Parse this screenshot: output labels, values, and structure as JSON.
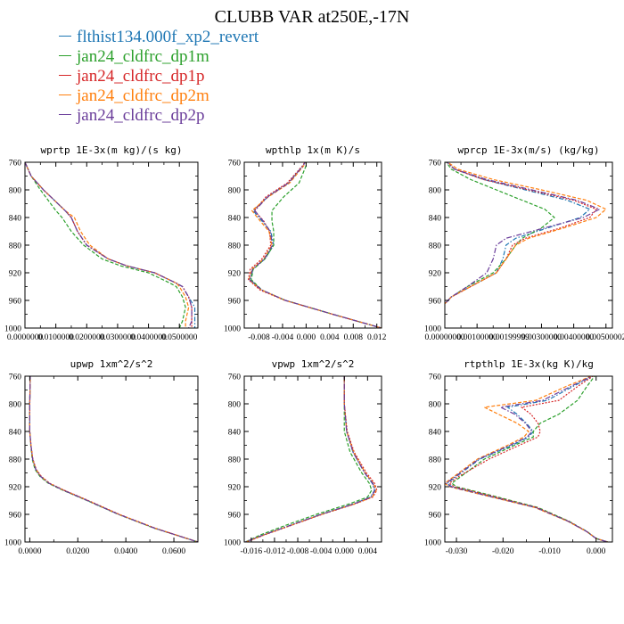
{
  "title": "CLUBB VAR at250E,-17N",
  "legend": [
    {
      "label": "flthist134.000f_xp2_revert",
      "color": "#1f77b4"
    },
    {
      "label": "jan24_cldfrc_dp1m",
      "color": "#2ca02c"
    },
    {
      "label": "jan24_cldfrc_dp1p",
      "color": "#d62728"
    },
    {
      "label": "jan24_cldfrc_dp2m",
      "color": "#ff7f0e"
    },
    {
      "label": "jan24_cldfrc_dp2p",
      "color": "#6a3d9a"
    }
  ],
  "chart_data": [
    {
      "type": "line",
      "title": "wprtp  1E-3x(m kg)/(s kg)",
      "ylim": [
        760,
        1000
      ],
      "xlim": [
        0.0,
        0.056
      ],
      "y_ticks": [
        760,
        800,
        840,
        880,
        920,
        960,
        1000
      ],
      "y_tick_labels": [
        "760",
        "800",
        "840",
        "880",
        "920",
        "960",
        "1000"
      ],
      "x_ticks": [
        0.0,
        0.01,
        0.02,
        0.03,
        0.04,
        0.05
      ],
      "x_tick_labels": [
        "0.0000000",
        "0.0100000",
        "0.0200000",
        "0.0300000",
        "0.0400000",
        "0.0500000"
      ],
      "y": [
        760,
        780,
        800,
        830,
        840,
        860,
        880,
        900,
        910,
        920,
        935,
        940,
        955,
        970,
        990,
        1000
      ],
      "series": [
        {
          "values": [
            0.0,
            0.002,
            0.006,
            0.013,
            0.015,
            0.017,
            0.02,
            0.027,
            0.033,
            0.042,
            0.049,
            0.051,
            0.053,
            0.055,
            0.055,
            0.055
          ]
        },
        {
          "values": [
            0.0,
            0.002,
            0.005,
            0.01,
            0.012,
            0.015,
            0.019,
            0.025,
            0.031,
            0.04,
            0.047,
            0.049,
            0.051,
            0.052,
            0.051,
            0.05
          ]
        },
        {
          "values": [
            0.0,
            0.002,
            0.006,
            0.013,
            0.015,
            0.017,
            0.02,
            0.027,
            0.033,
            0.042,
            0.049,
            0.051,
            0.053,
            0.054,
            0.054,
            0.054
          ]
        },
        {
          "values": [
            0.0,
            0.002,
            0.006,
            0.013,
            0.016,
            0.018,
            0.021,
            0.027,
            0.033,
            0.042,
            0.049,
            0.05,
            0.052,
            0.053,
            0.052,
            0.052
          ]
        },
        {
          "values": [
            0.0,
            0.002,
            0.006,
            0.013,
            0.015,
            0.017,
            0.02,
            0.027,
            0.033,
            0.042,
            0.049,
            0.051,
            0.053,
            0.054,
            0.054,
            0.053
          ]
        }
      ]
    },
    {
      "type": "line",
      "title": "wpthlp  1x(m K)/s",
      "ylim": [
        760,
        1000
      ],
      "xlim": [
        -0.0105,
        0.0128
      ],
      "y_ticks": [
        760,
        800,
        840,
        880,
        920,
        960,
        1000
      ],
      "y_tick_labels": [
        "760",
        "800",
        "840",
        "880",
        "920",
        "960",
        "1000"
      ],
      "x_ticks": [
        -0.008,
        -0.004,
        0.0,
        0.004,
        0.008,
        0.012
      ],
      "x_tick_labels": [
        "-0.008",
        "-0.004",
        "0.000",
        "0.004",
        "0.008",
        "0.012"
      ],
      "y": [
        757,
        765,
        790,
        810,
        830,
        845,
        860,
        880,
        900,
        915,
        930,
        945,
        960,
        980,
        1000
      ],
      "series": [
        {
          "values": [
            0.0,
            -0.0005,
            -0.003,
            -0.0065,
            -0.009,
            -0.0075,
            -0.006,
            -0.0055,
            -0.007,
            -0.009,
            -0.0095,
            -0.0075,
            -0.0035,
            0.0045,
            0.0128
          ]
        },
        {
          "values": [
            0.0,
            0.0,
            -0.0012,
            -0.0038,
            -0.0058,
            -0.0058,
            -0.0055,
            -0.0055,
            -0.007,
            -0.009,
            -0.0093,
            -0.0075,
            -0.0035,
            0.0045,
            0.0128
          ]
        },
        {
          "values": [
            0.0,
            -0.0006,
            -0.0032,
            -0.0068,
            -0.0088,
            -0.0072,
            -0.0062,
            -0.006,
            -0.0075,
            -0.0095,
            -0.0098,
            -0.0078,
            -0.0036,
            0.0045,
            0.0128
          ]
        },
        {
          "values": [
            0.0,
            -0.0004,
            -0.0028,
            -0.0064,
            -0.0092,
            -0.0078,
            -0.0063,
            -0.0058,
            -0.0072,
            -0.0092,
            -0.0097,
            -0.0076,
            -0.0035,
            0.0045,
            0.0128
          ]
        },
        {
          "values": [
            0.0,
            -0.0005,
            -0.003,
            -0.0065,
            -0.0087,
            -0.0073,
            -0.0061,
            -0.0057,
            -0.0071,
            -0.0091,
            -0.0096,
            -0.0075,
            -0.0035,
            0.0045,
            0.0128
          ]
        }
      ]
    },
    {
      "type": "line",
      "title": "wprcp  1E-3x(m/s) (kg/kg)",
      "ylim": [
        760,
        1000
      ],
      "xlim": [
        0.0,
        0.0052
      ],
      "y_ticks": [
        760,
        800,
        840,
        880,
        920,
        960,
        1000
      ],
      "y_tick_labels": [
        "760",
        "800",
        "840",
        "880",
        "920",
        "960",
        "1000"
      ],
      "x_ticks": [
        0.0,
        0.001,
        0.002,
        0.003,
        0.004,
        0.005
      ],
      "x_tick_labels": [
        "0.00000000",
        "0.00100000",
        "0.00199999",
        "0.00300000",
        "0.00400000",
        "0.00500002"
      ],
      "y": [
        757,
        770,
        785,
        800,
        815,
        828,
        840,
        855,
        870,
        880,
        900,
        920,
        940,
        955,
        965
      ],
      "series": [
        {
          "values": [
            0.0,
            0.0003,
            0.0012,
            0.0025,
            0.0038,
            0.0045,
            0.0042,
            0.0032,
            0.0022,
            0.0019,
            0.0018,
            0.0016,
            0.0008,
            0.0002,
            0.0
          ]
        },
        {
          "values": [
            0.0,
            0.0002,
            0.0008,
            0.0016,
            0.0024,
            0.0031,
            0.0034,
            0.003,
            0.0024,
            0.0022,
            0.0019,
            0.0015,
            0.0007,
            0.0002,
            0.0
          ]
        },
        {
          "values": [
            0.0,
            0.0003,
            0.0012,
            0.0026,
            0.004,
            0.0047,
            0.0045,
            0.0036,
            0.0025,
            0.0021,
            0.0019,
            0.0016,
            0.0008,
            0.0002,
            0.0
          ]
        },
        {
          "values": [
            0.0,
            0.0004,
            0.0015,
            0.003,
            0.0044,
            0.005,
            0.0047,
            0.0037,
            0.0026,
            0.0022,
            0.0019,
            0.0016,
            0.0008,
            0.0002,
            0.0
          ]
        },
        {
          "values": [
            0.0,
            0.0003,
            0.0013,
            0.0027,
            0.0041,
            0.0048,
            0.0043,
            0.0031,
            0.0019,
            0.0016,
            0.0015,
            0.0013,
            0.0007,
            0.0002,
            0.0
          ]
        }
      ]
    },
    {
      "type": "line",
      "title": "upwp  1xm^2/s^2",
      "ylim": [
        760,
        1000
      ],
      "xlim": [
        -0.002,
        0.07
      ],
      "y_ticks": [
        760,
        800,
        840,
        880,
        920,
        960,
        1000
      ],
      "y_tick_labels": [
        "760",
        "800",
        "840",
        "880",
        "920",
        "960",
        "1000"
      ],
      "x_ticks": [
        0.0,
        0.02,
        0.04,
        0.06
      ],
      "x_tick_labels": [
        "0.0000",
        "0.0200",
        "0.0400",
        "0.0600"
      ],
      "y": [
        757,
        780,
        800,
        820,
        840,
        860,
        880,
        895,
        905,
        915,
        925,
        940,
        960,
        980,
        1000
      ],
      "series": [
        {
          "values": [
            0.0002,
            0.0001,
            0.0,
            0.0,
            0.0,
            0.0005,
            0.0012,
            0.0025,
            0.0045,
            0.008,
            0.014,
            0.024,
            0.037,
            0.052,
            0.07
          ]
        },
        {
          "values": [
            0.0002,
            0.0001,
            0.0,
            0.0,
            0.0,
            0.0004,
            0.001,
            0.0022,
            0.0042,
            0.0077,
            0.0137,
            0.0238,
            0.0368,
            0.0518,
            0.07
          ]
        },
        {
          "values": [
            0.0002,
            0.0001,
            0.0,
            0.0,
            0.0,
            0.0005,
            0.0013,
            0.0027,
            0.0048,
            0.0083,
            0.0143,
            0.0244,
            0.0373,
            0.0522,
            0.07
          ]
        },
        {
          "values": [
            0.0002,
            0.0001,
            0.0,
            0.0,
            0.0,
            0.0005,
            0.0012,
            0.0026,
            0.0046,
            0.0081,
            0.0141,
            0.0241,
            0.0371,
            0.0521,
            0.07
          ]
        },
        {
          "values": [
            0.0002,
            0.0001,
            0.0,
            0.0,
            0.0,
            0.0005,
            0.0012,
            0.0025,
            0.0045,
            0.008,
            0.014,
            0.024,
            0.037,
            0.052,
            0.07
          ]
        }
      ]
    },
    {
      "type": "line",
      "title": "vpwp  1xm^2/s^2",
      "ylim": [
        760,
        1000
      ],
      "xlim": [
        -0.0172,
        0.0064
      ],
      "y_ticks": [
        760,
        800,
        840,
        880,
        920,
        960,
        1000
      ],
      "y_tick_labels": [
        "760",
        "800",
        "840",
        "880",
        "920",
        "960",
        "1000"
      ],
      "x_ticks": [
        -0.016,
        -0.012,
        -0.008,
        -0.004,
        0.0,
        0.004
      ],
      "x_tick_labels": [
        "-0.016",
        "-0.012",
        "-0.008",
        "-0.004",
        "0.000",
        "0.004"
      ],
      "y": [
        757,
        800,
        840,
        870,
        900,
        915,
        925,
        935,
        945,
        960,
        975,
        990,
        1000
      ],
      "series": [
        {
          "values": [
            0.0,
            0.0,
            0.0004,
            0.0015,
            0.0035,
            0.0048,
            0.0052,
            0.0045,
            0.0015,
            -0.004,
            -0.009,
            -0.014,
            -0.017
          ]
        },
        {
          "values": [
            0.0,
            0.0,
            0.0,
            0.001,
            0.003,
            0.0043,
            0.0047,
            0.004,
            0.0008,
            -0.0048,
            -0.0098,
            -0.0145,
            -0.017
          ]
        },
        {
          "values": [
            0.0,
            0.0,
            0.0005,
            0.0017,
            0.0038,
            0.0052,
            0.0056,
            0.0049,
            0.0018,
            -0.0038,
            -0.0088,
            -0.0138,
            -0.0168
          ]
        },
        {
          "values": [
            0.0,
            0.0,
            0.0004,
            0.0016,
            0.0036,
            0.005,
            0.0055,
            0.0048,
            0.0017,
            -0.0039,
            -0.0089,
            -0.0139,
            -0.0169
          ]
        },
        {
          "values": [
            0.0,
            0.0,
            0.0004,
            0.0015,
            0.0035,
            0.0049,
            0.0053,
            0.0046,
            0.0016,
            -0.004,
            -0.009,
            -0.014,
            -0.017
          ]
        }
      ]
    },
    {
      "type": "line",
      "title": "rtpthlp  1E-3x(kg K)/kg",
      "ylim": [
        760,
        1000
      ],
      "xlim": [
        -0.0325,
        0.0035
      ],
      "y_ticks": [
        760,
        800,
        840,
        880,
        920,
        960,
        1000
      ],
      "y_tick_labels": [
        "760",
        "800",
        "840",
        "880",
        "920",
        "960",
        "1000"
      ],
      "x_ticks": [
        -0.03,
        -0.02,
        -0.01,
        0.0
      ],
      "x_tick_labels": [
        "-0.030",
        "-0.020",
        "-0.010",
        "0.000"
      ],
      "y": [
        757,
        775,
        795,
        805,
        815,
        828,
        840,
        848,
        860,
        880,
        905,
        915,
        920,
        930,
        950,
        970,
        985,
        995,
        1000
      ],
      "series": [
        {
          "values": [
            0.0,
            -0.005,
            -0.0105,
            -0.019,
            -0.017,
            -0.015,
            -0.0135,
            -0.0145,
            -0.018,
            -0.025,
            -0.03,
            -0.032,
            -0.031,
            -0.025,
            -0.013,
            -0.006,
            -0.002,
            0.0,
            0.0025
          ]
        },
        {
          "values": [
            0.0,
            -0.002,
            -0.004,
            -0.006,
            -0.008,
            -0.012,
            -0.0135,
            -0.0135,
            -0.0175,
            -0.024,
            -0.029,
            -0.031,
            -0.03,
            -0.024,
            -0.0125,
            -0.0058,
            -0.0019,
            0.0,
            0.0025
          ]
        },
        {
          "values": [
            0.0,
            -0.004,
            -0.008,
            -0.016,
            -0.014,
            -0.0125,
            -0.012,
            -0.0125,
            -0.0165,
            -0.023,
            -0.0295,
            -0.0315,
            -0.0305,
            -0.0245,
            -0.0128,
            -0.0059,
            -0.002,
            0.0,
            0.0025
          ]
        },
        {
          "values": [
            0.0,
            -0.0065,
            -0.013,
            -0.024,
            -0.021,
            -0.017,
            -0.0145,
            -0.0155,
            -0.019,
            -0.0255,
            -0.0305,
            -0.0325,
            -0.0315,
            -0.0255,
            -0.0132,
            -0.0061,
            -0.002,
            0.0,
            0.0025
          ]
        },
        {
          "values": [
            0.0,
            -0.0055,
            -0.0115,
            -0.0205,
            -0.0175,
            -0.0152,
            -0.0138,
            -0.0148,
            -0.0185,
            -0.0252,
            -0.0302,
            -0.0322,
            -0.0312,
            -0.0252,
            -0.013,
            -0.006,
            -0.002,
            0.0,
            0.0025
          ]
        }
      ]
    }
  ]
}
